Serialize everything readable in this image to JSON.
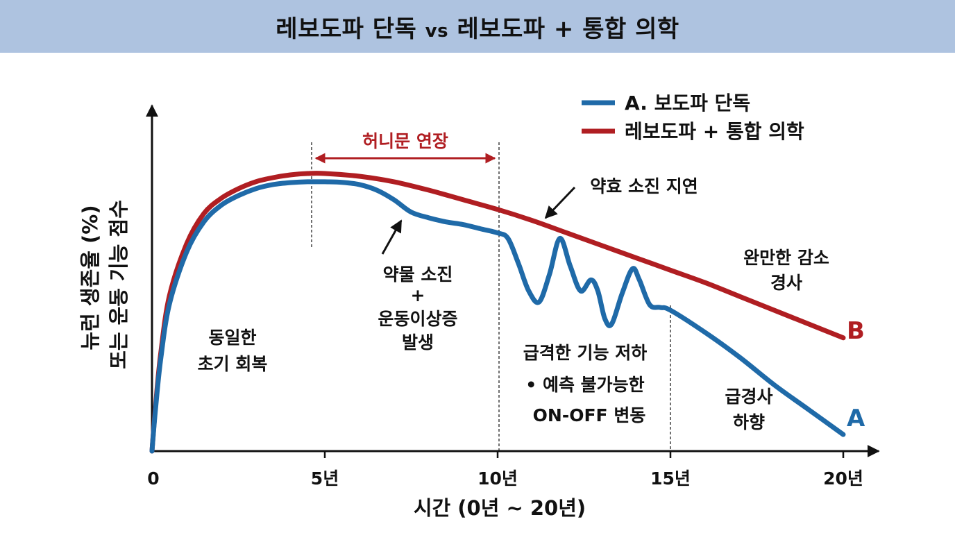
{
  "header": {
    "title_left": "레보도파 단독",
    "title_vs": "vs",
    "title_right": "레보도파 + 통합 의학"
  },
  "colors": {
    "series_a": "#1f6aa8",
    "series_b": "#b01e22",
    "annotation_red": "#b01e22",
    "title_bg": "#aec3e0"
  },
  "chart_data": {
    "type": "line",
    "xlabel": "시간 (0년 ~ 20년)",
    "ylabel_line1": "뉴런 생존율 (%)",
    "ylabel_line2": "또는 운동 기능 점수",
    "x_ticks": [
      0,
      5,
      10,
      15,
      20
    ],
    "x_tick_labels": [
      "0",
      "5년",
      "10년",
      "15년",
      "20년"
    ],
    "xlim": [
      0,
      20
    ],
    "ylim": [
      0,
      100
    ],
    "grid": false,
    "legend_position": "top-right",
    "series": [
      {
        "name": "A. 보도파 단독",
        "end_label": "A",
        "x": [
          0,
          0.1,
          0.25,
          0.5,
          1,
          1.5,
          2,
          2.5,
          3,
          3.5,
          4,
          4.5,
          5,
          5.5,
          6,
          6.5,
          7,
          7.5,
          8,
          8.5,
          9,
          9.5,
          10,
          10.3,
          10.6,
          10.9,
          11.2,
          11.5,
          11.8,
          12.1,
          12.4,
          12.7,
          12.9,
          13.1,
          13.3,
          13.6,
          13.9,
          14.1,
          14.4,
          14.7,
          15,
          16,
          17,
          18,
          19,
          20
        ],
        "y": [
          0,
          15,
          33,
          53,
          72,
          83,
          89,
          92.5,
          95,
          96.5,
          97.2,
          97.5,
          97.5,
          97.3,
          96.5,
          94.5,
          91,
          86.5,
          84.5,
          83,
          82,
          80.5,
          79,
          77,
          68,
          58,
          54,
          64,
          77,
          67,
          58,
          62,
          58,
          48,
          46,
          57,
          66,
          62,
          53,
          52,
          51,
          43,
          34,
          24,
          15,
          6
        ]
      },
      {
        "name": "레보도파 + 통합 의학",
        "end_label": "B",
        "x": [
          0,
          0.1,
          0.25,
          0.5,
          1,
          1.5,
          2,
          2.5,
          3,
          3.5,
          4,
          4.5,
          5,
          6,
          7,
          8,
          9,
          10,
          11,
          12,
          13,
          14,
          15,
          16,
          17,
          18,
          19,
          20
        ],
        "y": [
          0,
          16,
          35,
          56,
          75,
          86,
          91.5,
          95,
          97.5,
          99,
          100,
          100.5,
          100.5,
          99.5,
          97.5,
          94.5,
          91,
          87.5,
          83.5,
          79,
          74.5,
          70,
          65.5,
          61,
          56,
          51,
          46,
          41
        ]
      }
    ],
    "annotations": {
      "honeymoon": "허니문 연장",
      "early_recovery": [
        "동일한",
        "초기 회복"
      ],
      "drug_depletion": [
        "약물 소진",
        "+",
        "운동이상증",
        "발생"
      ],
      "delay": "약효 소진 지연",
      "rapid_decline": "급격한 기능 저하",
      "onoff": [
        "• 예측 불가능한",
        "ON-OFF 변동"
      ],
      "gentle_slope": [
        "완만한 감소",
        "경사"
      ],
      "steep_slope": [
        "급경사",
        "하향"
      ]
    }
  }
}
